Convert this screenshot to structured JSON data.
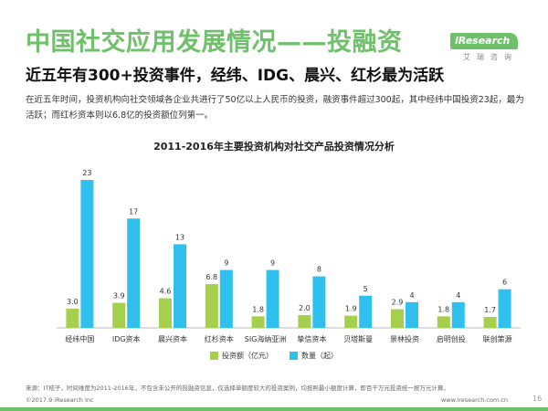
{
  "page": {
    "title": "中国社交应用发展情况——投融资",
    "headline": "近五年有300+投资事件，经纬、IDG、晨兴、红杉最为活跃",
    "summary": "在近五年时间，投资机构向社交领域各企业共进行了50亿以上人民币的投资，融资事件超过300起，其中经纬中国投资23起，最为活跃；而红杉资本则以6.8亿的投资额位列第一。",
    "logo_text": "iResearch",
    "logo_cn": "艾瑞咨询",
    "source": "来源：IT桔子，时间维度为2011-2016年，不包含未公开的投融资信息，仅选择单额度较大的投资案例，均按照最小额度计算，即百千万元投资统一按万元计算。",
    "copyright": "©2017.9 iResearch Inc",
    "url": "www.iresearch.com.cn",
    "page_number": "16"
  },
  "chart_data": {
    "type": "bar",
    "title": "2011-2016年主要投资机构对社交产品投资情况分析",
    "categories": [
      "经纬中国",
      "IDG资本",
      "晨兴资本",
      "红杉资本",
      "SIG海纳亚洲",
      "挚信资本",
      "贝塔斯曼",
      "景林投资",
      "启明创投",
      "联创策源"
    ],
    "series": [
      {
        "name": "投资额（亿元）",
        "color": "#a5cf4c",
        "values": [
          3.0,
          3.9,
          4.6,
          6.8,
          1.8,
          2.0,
          1.9,
          2.9,
          1.8,
          1.7
        ],
        "labels": [
          "3.0",
          "3.9",
          "4.6",
          "6.8",
          "1.8",
          "2.0",
          "1.9",
          "2.9",
          "1.8",
          "1.7"
        ]
      },
      {
        "name": "数量（起）",
        "color": "#2fc0ee",
        "values": [
          23,
          17,
          13,
          9,
          9,
          8,
          5,
          4,
          4,
          6
        ],
        "labels": [
          "23",
          "17",
          "13",
          "9",
          "9",
          "8",
          "5",
          "4",
          "4",
          "6"
        ]
      }
    ],
    "ylim": [
      0,
      23
    ],
    "grid": false,
    "legend": "bottom"
  }
}
